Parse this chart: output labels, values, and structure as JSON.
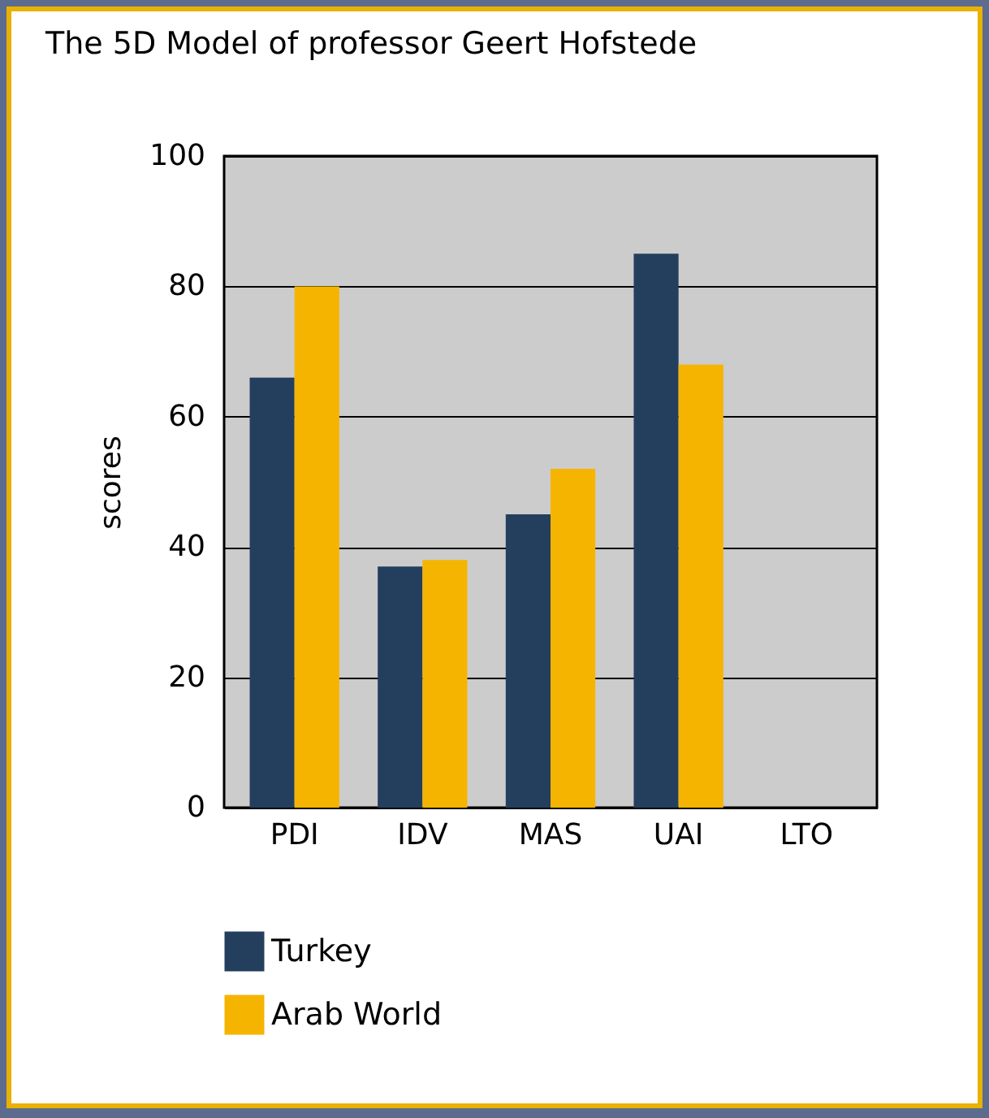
{
  "chart_data": {
    "type": "bar",
    "title": "The 5D Model of professor Geert Hofstede",
    "ylabel": "scores",
    "categories": [
      "PDI",
      "IDV",
      "MAS",
      "UAI",
      "LTO"
    ],
    "series": [
      {
        "name": "Turkey",
        "color": "#243f5e",
        "values": [
          66,
          37,
          45,
          85,
          null
        ]
      },
      {
        "name": "Arab World",
        "color": "#f5b400",
        "values": [
          80,
          38,
          52,
          68,
          null
        ]
      }
    ],
    "ylim": [
      0,
      100
    ],
    "yticks": [
      0,
      20,
      40,
      60,
      80,
      100
    ],
    "grid": "y",
    "legend": "bottom"
  }
}
